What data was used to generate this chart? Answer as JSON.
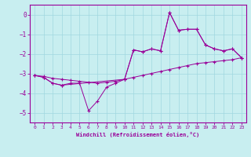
{
  "xlabel": "Windchill (Refroidissement éolien,°C)",
  "ylabel": "",
  "background_color": "#c8eef0",
  "line_color": "#990099",
  "grid_color": "#a0d8e0",
  "xlim": [
    -0.5,
    23.5
  ],
  "ylim": [
    -5.5,
    0.5
  ],
  "yticks": [
    0,
    -1,
    -2,
    -3,
    -4,
    -5
  ],
  "xticks": [
    0,
    1,
    2,
    3,
    4,
    5,
    6,
    7,
    8,
    9,
    10,
    11,
    12,
    13,
    14,
    15,
    16,
    17,
    18,
    19,
    20,
    21,
    22,
    23
  ],
  "series1": [
    [
      0,
      -3.1
    ],
    [
      1,
      -3.2
    ],
    [
      2,
      -3.5
    ],
    [
      3,
      -3.6
    ],
    [
      4,
      -3.5
    ],
    [
      5,
      -3.5
    ],
    [
      6,
      -4.9
    ],
    [
      7,
      -4.4
    ],
    [
      8,
      -3.7
    ],
    [
      9,
      -3.5
    ],
    [
      10,
      -3.3
    ],
    [
      11,
      -1.8
    ],
    [
      12,
      -1.9
    ],
    [
      13,
      -1.75
    ],
    [
      14,
      -1.85
    ],
    [
      15,
      0.1
    ],
    [
      16,
      -0.8
    ],
    [
      17,
      -0.75
    ],
    [
      18,
      -0.75
    ],
    [
      19,
      -1.55
    ],
    [
      20,
      -1.75
    ],
    [
      21,
      -1.85
    ],
    [
      22,
      -1.75
    ],
    [
      23,
      -2.2
    ]
  ],
  "series2": [
    [
      0,
      -3.1
    ],
    [
      1,
      -3.15
    ],
    [
      2,
      -3.25
    ],
    [
      3,
      -3.3
    ],
    [
      4,
      -3.35
    ],
    [
      5,
      -3.4
    ],
    [
      6,
      -3.45
    ],
    [
      7,
      -3.5
    ],
    [
      8,
      -3.45
    ],
    [
      9,
      -3.4
    ],
    [
      10,
      -3.3
    ],
    [
      11,
      -3.2
    ],
    [
      12,
      -3.1
    ],
    [
      13,
      -3.0
    ],
    [
      14,
      -2.9
    ],
    [
      15,
      -2.8
    ],
    [
      16,
      -2.7
    ],
    [
      17,
      -2.6
    ],
    [
      18,
      -2.5
    ],
    [
      19,
      -2.45
    ],
    [
      20,
      -2.4
    ],
    [
      21,
      -2.35
    ],
    [
      22,
      -2.3
    ],
    [
      23,
      -2.2
    ]
  ],
  "series3": [
    [
      0,
      -3.1
    ],
    [
      1,
      -3.2
    ],
    [
      2,
      -3.5
    ],
    [
      3,
      -3.6
    ],
    [
      10,
      -3.3
    ],
    [
      11,
      -1.8
    ],
    [
      12,
      -1.9
    ],
    [
      13,
      -1.75
    ],
    [
      14,
      -1.85
    ],
    [
      15,
      0.1
    ],
    [
      16,
      -0.8
    ],
    [
      17,
      -0.75
    ],
    [
      18,
      -0.75
    ],
    [
      19,
      -1.55
    ],
    [
      20,
      -1.75
    ],
    [
      21,
      -1.85
    ],
    [
      22,
      -1.75
    ],
    [
      23,
      -2.2
    ]
  ]
}
